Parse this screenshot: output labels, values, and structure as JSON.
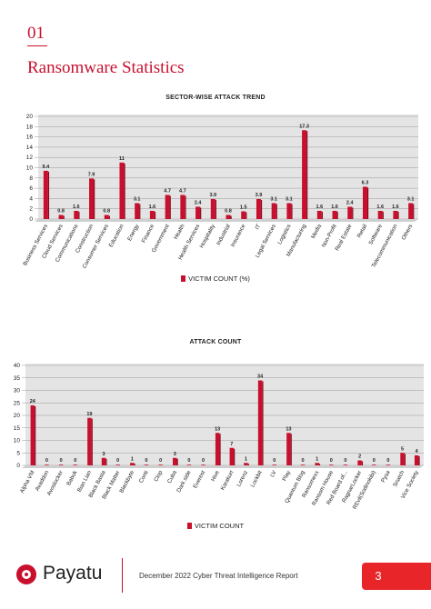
{
  "header": {
    "section_number": "01",
    "title": "Ransomware Statistics"
  },
  "chart_data": [
    {
      "type": "bar",
      "title": "SECTOR-WISE ATTACK TREND",
      "ylim": [
        0,
        20
      ],
      "yticks": [
        0,
        2,
        4,
        6,
        8,
        10,
        12,
        14,
        16,
        18,
        20
      ],
      "legend": "VICTIM COUNT (%)",
      "legend_position": "bottom-center",
      "grid": true,
      "categories": [
        "Business Services",
        "Cloud Services",
        "Communications",
        "Construction",
        "Consumer Services",
        "Education",
        "Energy",
        "Finance",
        "Government",
        "Health",
        "Health Services",
        "Hospitality",
        "Industrial",
        "Insurance",
        "IT",
        "Legal Services",
        "Logistics",
        "Manufacturing",
        "Media",
        "Non-Profit",
        "Real Estate",
        "Retail",
        "Software",
        "Telecommunication",
        "Others"
      ],
      "series": [
        {
          "name": "VICTIM COUNT (%)",
          "values": [
            9.4,
            0.8,
            1.6,
            7.9,
            0.8,
            11,
            3.1,
            1.6,
            4.7,
            4.7,
            2.4,
            3.9,
            0.8,
            1.5,
            3.9,
            3.1,
            3.1,
            17.3,
            1.6,
            1.6,
            2.4,
            6.3,
            1.6,
            1.6,
            3.1
          ]
        }
      ],
      "data_labels": [
        "9.4",
        "0.8",
        "1.6",
        "7.9",
        "0.8",
        "11",
        "3.1",
        "1.6",
        "4.7",
        "4.7",
        "2.4",
        "3.9",
        "0.8",
        "1.5",
        "3.9",
        "3.1",
        "3.1",
        "17.3",
        "1.6",
        "1.6",
        "2.4",
        "6.3",
        "1.6",
        "1.6",
        "3.1"
      ],
      "colors": {
        "bar": "#c8102e",
        "wall": "#e4e4e4",
        "grid": "#9a9a9a"
      }
    },
    {
      "type": "bar",
      "title": "ATTACK COUNT",
      "ylim": [
        0,
        40
      ],
      "yticks": [
        0,
        5,
        10,
        15,
        20,
        25,
        30,
        35,
        40
      ],
      "legend": "VICTIM COUNT",
      "legend_position": "bottom-center",
      "grid": true,
      "categories": [
        "Alpha VM",
        "Avaddon",
        "Avoslocker",
        "Babuk",
        "Bian Lian",
        "Black Basta",
        "Black Matter",
        "Blackbyte",
        "Conti",
        "Clop",
        "Cuba",
        "Dark side",
        "Everest",
        "Hive",
        "Karakurt",
        "Lorenz",
        "Lockbit",
        "LV",
        "Play",
        "Quantum Blog",
        "Ransomexx",
        "Ransom House",
        "Red Board of...",
        "RagnarLocker",
        "REvil(Sodinokibi)",
        "Pysa",
        "Snatch",
        "Vice Society"
      ],
      "series": [
        {
          "name": "VICTIM COUNT",
          "values": [
            24,
            0,
            0,
            0,
            19,
            3,
            0,
            1,
            0,
            0,
            3,
            0,
            0,
            13,
            7,
            1,
            34,
            0,
            13,
            0,
            1,
            0,
            0,
            2,
            0,
            0,
            5,
            4
          ]
        }
      ],
      "data_labels": [
        "24",
        "0",
        "0",
        "0",
        "19",
        "3",
        "0",
        "1",
        "0",
        "0",
        "3",
        "0",
        "0",
        "13",
        "7",
        "1",
        "34",
        "0",
        "13",
        "0",
        "1",
        "0",
        "0",
        "2",
        "0",
        "0",
        "5",
        "4"
      ],
      "colors": {
        "bar": "#c8102e",
        "wall": "#e4e4e4",
        "grid": "#9a9a9a"
      }
    }
  ],
  "footer": {
    "brand": "Payatu",
    "report": "December 2022 Cyber Threat Intelligence Report",
    "page": "3"
  }
}
